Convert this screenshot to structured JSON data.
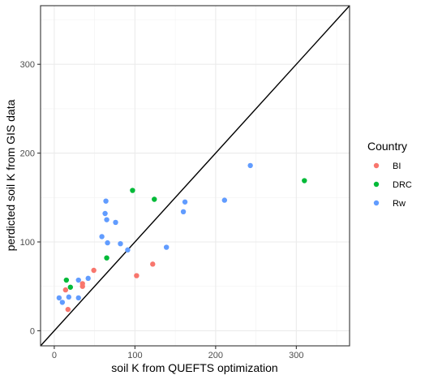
{
  "chart_data": {
    "type": "scatter",
    "xlabel": "soil K from QUEFTS optimization",
    "ylabel": "perdicted soil K from GIS data",
    "xlim": [
      -17,
      366
    ],
    "ylim": [
      -17,
      366
    ],
    "x_ticks": [
      0,
      100,
      200,
      300
    ],
    "y_ticks": [
      0,
      100,
      200,
      300
    ],
    "grid": true,
    "reference_line": {
      "slope": 1,
      "intercept": 0
    },
    "legend_title": "Country",
    "legend_position": "right",
    "series": [
      {
        "name": "BI",
        "color": "#F8766D",
        "points": [
          [
            14,
            46
          ],
          [
            17,
            24
          ],
          [
            35,
            53
          ],
          [
            35,
            50
          ],
          [
            49,
            68
          ],
          [
            102,
            62
          ],
          [
            122,
            75
          ]
        ]
      },
      {
        "name": "DRC",
        "color": "#00BA38",
        "points": [
          [
            15,
            57
          ],
          [
            20,
            49
          ],
          [
            65,
            82
          ],
          [
            97,
            158
          ],
          [
            124,
            148
          ],
          [
            310,
            169
          ]
        ]
      },
      {
        "name": "Rw",
        "color": "#619CFF",
        "points": [
          [
            6,
            37
          ],
          [
            10,
            32
          ],
          [
            18,
            38
          ],
          [
            30,
            37
          ],
          [
            30,
            57
          ],
          [
            42,
            59
          ],
          [
            59,
            106
          ],
          [
            63,
            132
          ],
          [
            64,
            146
          ],
          [
            65,
            125
          ],
          [
            66,
            99
          ],
          [
            76,
            122
          ],
          [
            82,
            98
          ],
          [
            91,
            91
          ],
          [
            139,
            94
          ],
          [
            160,
            134
          ],
          [
            162,
            145
          ],
          [
            211,
            147
          ],
          [
            243,
            186
          ]
        ]
      }
    ]
  }
}
